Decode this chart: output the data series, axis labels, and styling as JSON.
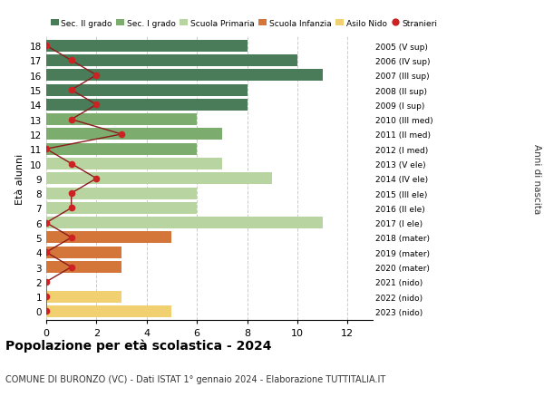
{
  "ages": [
    18,
    17,
    16,
    15,
    14,
    13,
    12,
    11,
    10,
    9,
    8,
    7,
    6,
    5,
    4,
    3,
    2,
    1,
    0
  ],
  "right_labels": [
    "2005 (V sup)",
    "2006 (IV sup)",
    "2007 (III sup)",
    "2008 (II sup)",
    "2009 (I sup)",
    "2010 (III med)",
    "2011 (II med)",
    "2012 (I med)",
    "2013 (V ele)",
    "2014 (IV ele)",
    "2015 (III ele)",
    "2016 (II ele)",
    "2017 (I ele)",
    "2018 (mater)",
    "2019 (mater)",
    "2020 (mater)",
    "2021 (nido)",
    "2022 (nido)",
    "2023 (nido)"
  ],
  "bar_values": [
    8,
    10,
    11,
    8,
    8,
    6,
    7,
    6,
    7,
    9,
    6,
    6,
    11,
    5,
    3,
    3,
    0,
    3,
    5
  ],
  "bar_colors": [
    "#4a7c59",
    "#4a7c59",
    "#4a7c59",
    "#4a7c59",
    "#4a7c59",
    "#7cac6e",
    "#7cac6e",
    "#7cac6e",
    "#b8d4a0",
    "#b8d4a0",
    "#b8d4a0",
    "#b8d4a0",
    "#b8d4a0",
    "#d4763a",
    "#d4763a",
    "#d4763a",
    "#f0d070",
    "#f0d070",
    "#f0d070"
  ],
  "stranieri_values": [
    0,
    1,
    2,
    1,
    2,
    1,
    3,
    0,
    1,
    2,
    1,
    1,
    0,
    1,
    0,
    1,
    0,
    0,
    0
  ],
  "xlim": [
    0,
    13
  ],
  "ylabel": "Età alunni",
  "right_ylabel": "Anni di nascita",
  "title": "Popolazione per età scolastica - 2024",
  "subtitle": "COMUNE DI BURONZO (VC) - Dati ISTAT 1° gennaio 2024 - Elaborazione TUTTITALIA.IT",
  "legend_labels": [
    "Sec. II grado",
    "Sec. I grado",
    "Scuola Primaria",
    "Scuola Infanzia",
    "Asilo Nido",
    "Stranieri"
  ],
  "legend_colors": [
    "#4a7c59",
    "#7cac6e",
    "#b8d4a0",
    "#d4763a",
    "#f0d070",
    "#cc2222"
  ],
  "bar_height": 0.8,
  "background_color": "#ffffff",
  "grid_color": "#cccccc",
  "stranieri_line_color": "#8b1a1a",
  "stranieri_dot_color": "#cc2222"
}
